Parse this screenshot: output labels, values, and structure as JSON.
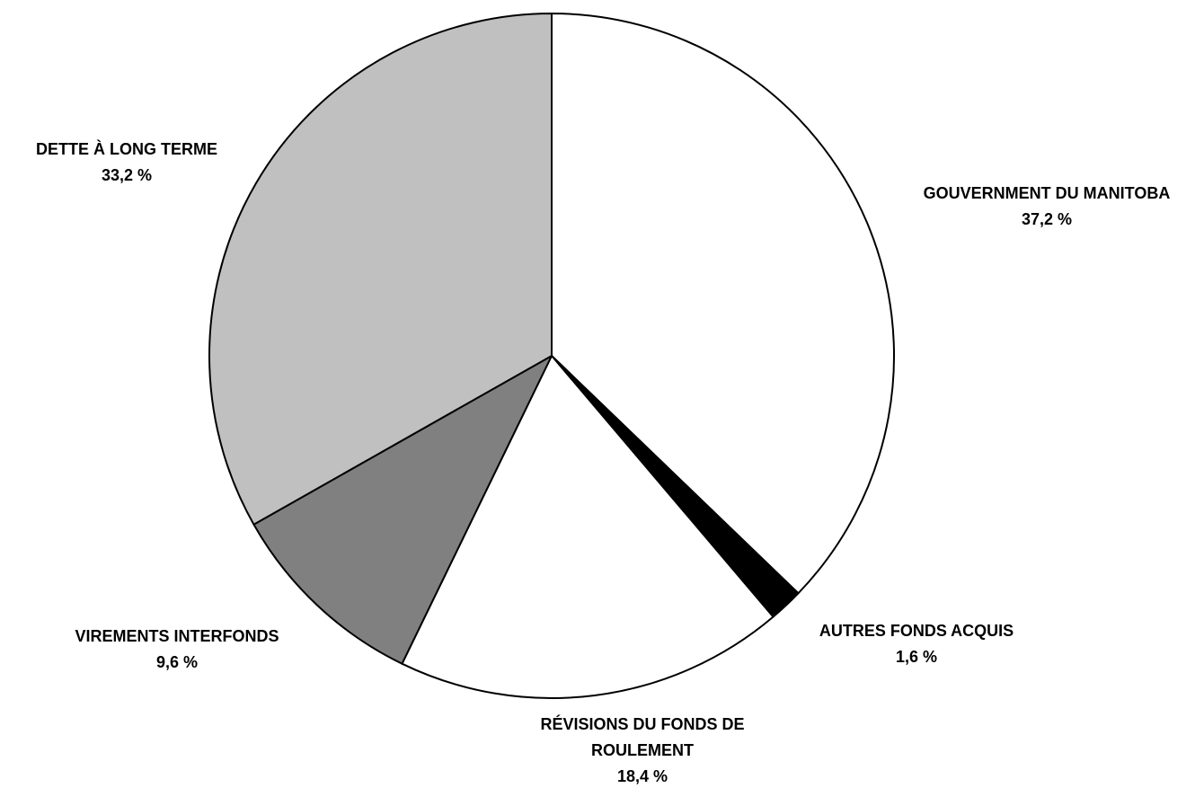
{
  "chart_data": {
    "type": "pie",
    "title": "",
    "start_angle_deg": 0,
    "direction": "clockwise",
    "slices": [
      {
        "label": "GOUVERNMENT DU MANITOBA",
        "label_lines": [
          "GOUVERNMENT DU MANITOBA"
        ],
        "value": 37.2,
        "value_text": "37,2 %",
        "color": "#ffffff"
      },
      {
        "label": "AUTRES FONDS ACQUIS",
        "label_lines": [
          "AUTRES FONDS ACQUIS"
        ],
        "value": 1.6,
        "value_text": "1,6 %",
        "color": "#000000"
      },
      {
        "label": "RÉVISIONS DU FONDS DE ROULEMENT",
        "label_lines": [
          "RÉVISIONS DU FONDS DE",
          "ROULEMENT"
        ],
        "value": 18.4,
        "value_text": "18,4 %",
        "color": "#ffffff"
      },
      {
        "label": "VIREMENTS INTERFONDS",
        "label_lines": [
          "VIREMENTS INTERFONDS"
        ],
        "value": 9.6,
        "value_text": "9,6 %",
        "color": "#808080"
      },
      {
        "label": "DETTE À LONG TERME",
        "label_lines": [
          "DETTE À LONG TERME"
        ],
        "value": 33.2,
        "value_text": "33,2 %",
        "color": "#c0c0c0"
      }
    ]
  }
}
